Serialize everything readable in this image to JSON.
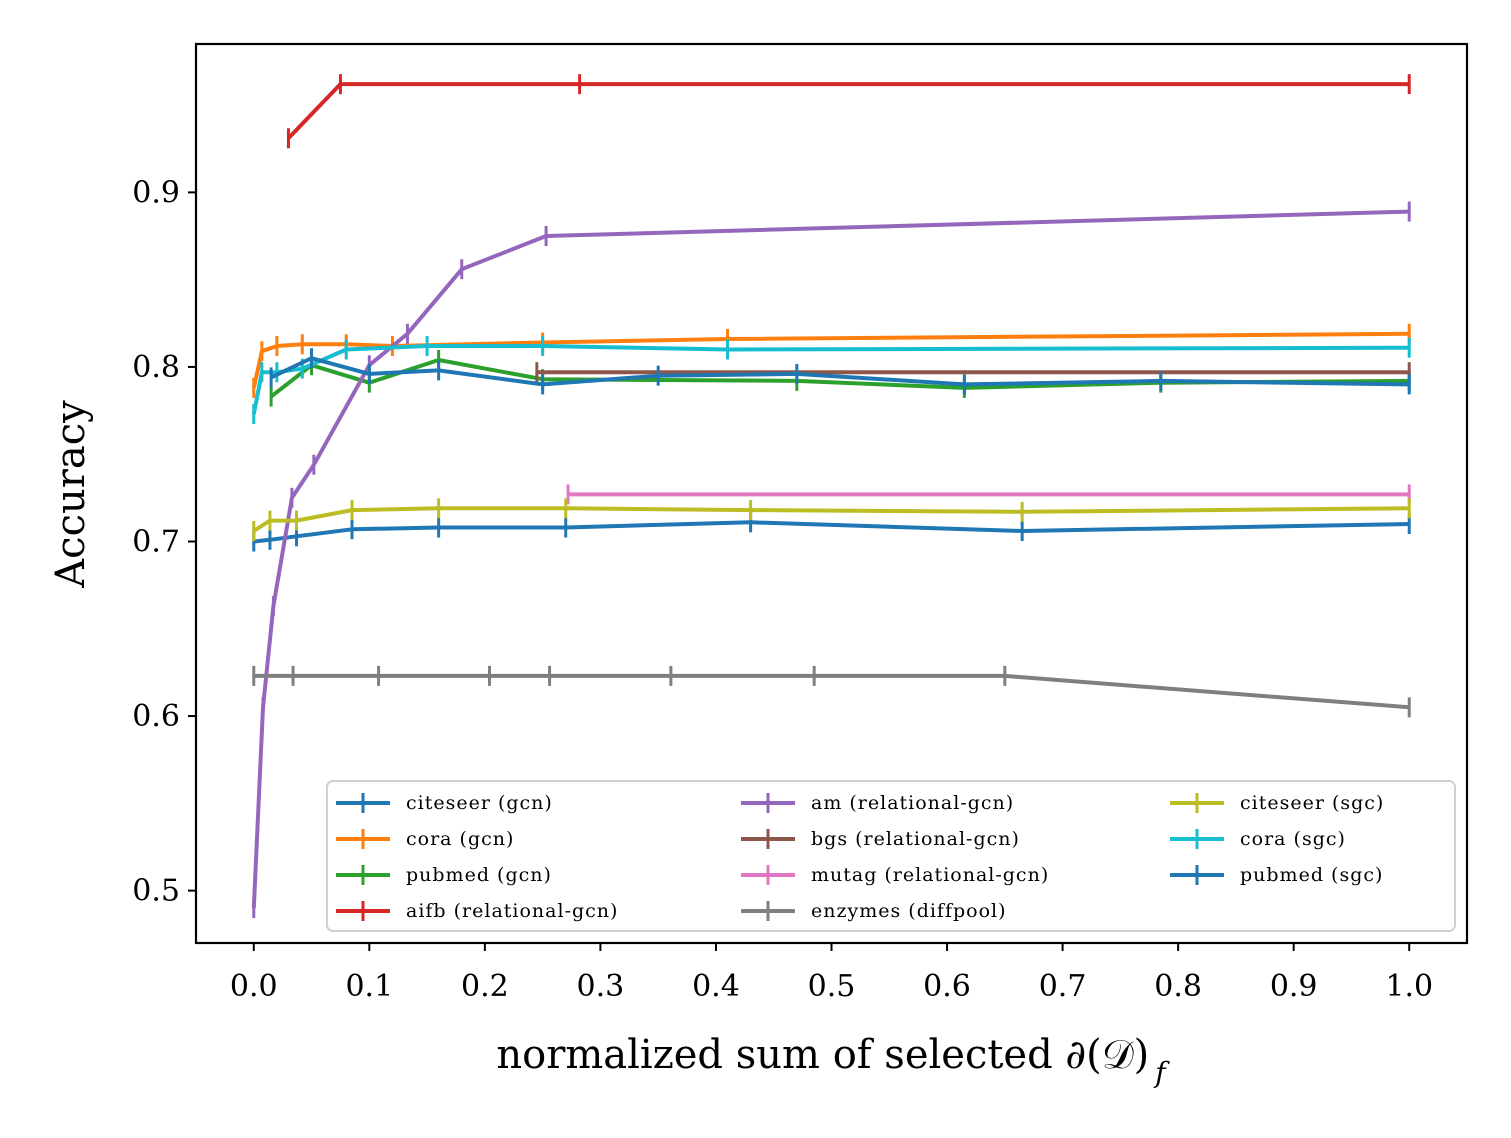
{
  "chart_data": {
    "type": "line",
    "title": "",
    "xlabel": "normalized sum of selected ∂(𝒟)",
    "xlabel_subscript": "f",
    "ylabel": "Accuracy",
    "xlim": [
      -0.05,
      1.05
    ],
    "ylim": [
      0.47,
      0.985
    ],
    "xticks": [
      0.0,
      0.1,
      0.2,
      0.3,
      0.4,
      0.5,
      0.6,
      0.7,
      0.8,
      0.9,
      1.0
    ],
    "xtick_labels": [
      "0.0",
      "0.1",
      "0.2",
      "0.3",
      "0.4",
      "0.5",
      "0.6",
      "0.7",
      "0.8",
      "0.9",
      "1.0"
    ],
    "yticks": [
      0.5,
      0.6,
      0.7,
      0.8,
      0.9
    ],
    "ytick_labels": [
      "0.5",
      "0.6",
      "0.7",
      "0.8",
      "0.9"
    ],
    "grid": false,
    "legend_position": "lower-right",
    "legend_columns": 3,
    "series": [
      {
        "name": "citeseer (gcn)",
        "color": "#1f77b4",
        "x": [
          0.0,
          0.014,
          0.037,
          0.085,
          0.16,
          0.27,
          0.43,
          0.665,
          1.0
        ],
        "y": [
          0.7,
          0.701,
          0.703,
          0.707,
          0.708,
          0.708,
          0.711,
          0.706,
          0.71
        ]
      },
      {
        "name": "cora (gcn)",
        "color": "#ff7f0e",
        "x": [
          0.0,
          0.007,
          0.02,
          0.042,
          0.08,
          0.12,
          0.25,
          0.41,
          1.0
        ],
        "y": [
          0.788,
          0.809,
          0.812,
          0.813,
          0.813,
          0.812,
          0.814,
          0.816,
          0.819
        ]
      },
      {
        "name": "pubmed (gcn)",
        "color": "#2ca02c",
        "x": [
          0.015,
          0.05,
          0.1,
          0.16,
          0.25,
          0.47,
          0.615,
          0.785,
          1.0
        ],
        "y": [
          0.783,
          0.801,
          0.791,
          0.804,
          0.793,
          0.792,
          0.788,
          0.791,
          0.792
        ]
      },
      {
        "name": "aifb (relational-gcn)",
        "color": "#d62728",
        "x": [
          0.03,
          0.075,
          0.282,
          1.0
        ],
        "y": [
          0.931,
          0.962,
          0.962,
          0.962
        ]
      },
      {
        "name": "am (relational-gcn)",
        "color": "#9467bd",
        "x": [
          0.0,
          0.008,
          0.017,
          0.033,
          0.052,
          0.1,
          0.133,
          0.18,
          0.253,
          1.0
        ],
        "y": [
          0.49,
          0.605,
          0.663,
          0.725,
          0.744,
          0.801,
          0.819,
          0.856,
          0.875,
          0.889
        ]
      },
      {
        "name": "bgs (relational-gcn)",
        "color": "#8c564b",
        "x": [
          0.245,
          1.0
        ],
        "y": [
          0.797,
          0.797
        ]
      },
      {
        "name": "mutag (relational-gcn)",
        "color": "#e377c2",
        "x": [
          0.272,
          1.0
        ],
        "y": [
          0.727,
          0.727
        ]
      },
      {
        "name": "enzymes (diffpool)",
        "color": "#7f7f7f",
        "x": [
          0.0,
          0.034,
          0.108,
          0.204,
          0.256,
          0.361,
          0.485,
          0.65,
          1.0
        ],
        "y": [
          0.623,
          0.623,
          0.623,
          0.623,
          0.623,
          0.623,
          0.623,
          0.623,
          0.605
        ]
      },
      {
        "name": "citeseer (sgc)",
        "color": "#bcbd22",
        "x": [
          0.0,
          0.014,
          0.037,
          0.085,
          0.16,
          0.27,
          0.43,
          0.665,
          1.0
        ],
        "y": [
          0.706,
          0.712,
          0.712,
          0.718,
          0.719,
          0.719,
          0.718,
          0.717,
          0.719
        ]
      },
      {
        "name": "cora (sgc)",
        "color": "#17becf",
        "x": [
          0.0,
          0.007,
          0.02,
          0.042,
          0.08,
          0.15,
          0.25,
          0.41,
          1.0
        ],
        "y": [
          0.773,
          0.797,
          0.797,
          0.799,
          0.81,
          0.812,
          0.812,
          0.81,
          0.811
        ]
      },
      {
        "name": "pubmed (sgc)",
        "color": "#1f77b4",
        "x": [
          0.015,
          0.05,
          0.1,
          0.16,
          0.25,
          0.35,
          0.47,
          0.615,
          0.785,
          1.0
        ],
        "y": [
          0.794,
          0.805,
          0.796,
          0.798,
          0.79,
          0.795,
          0.796,
          0.79,
          0.792,
          0.79
        ]
      }
    ]
  }
}
